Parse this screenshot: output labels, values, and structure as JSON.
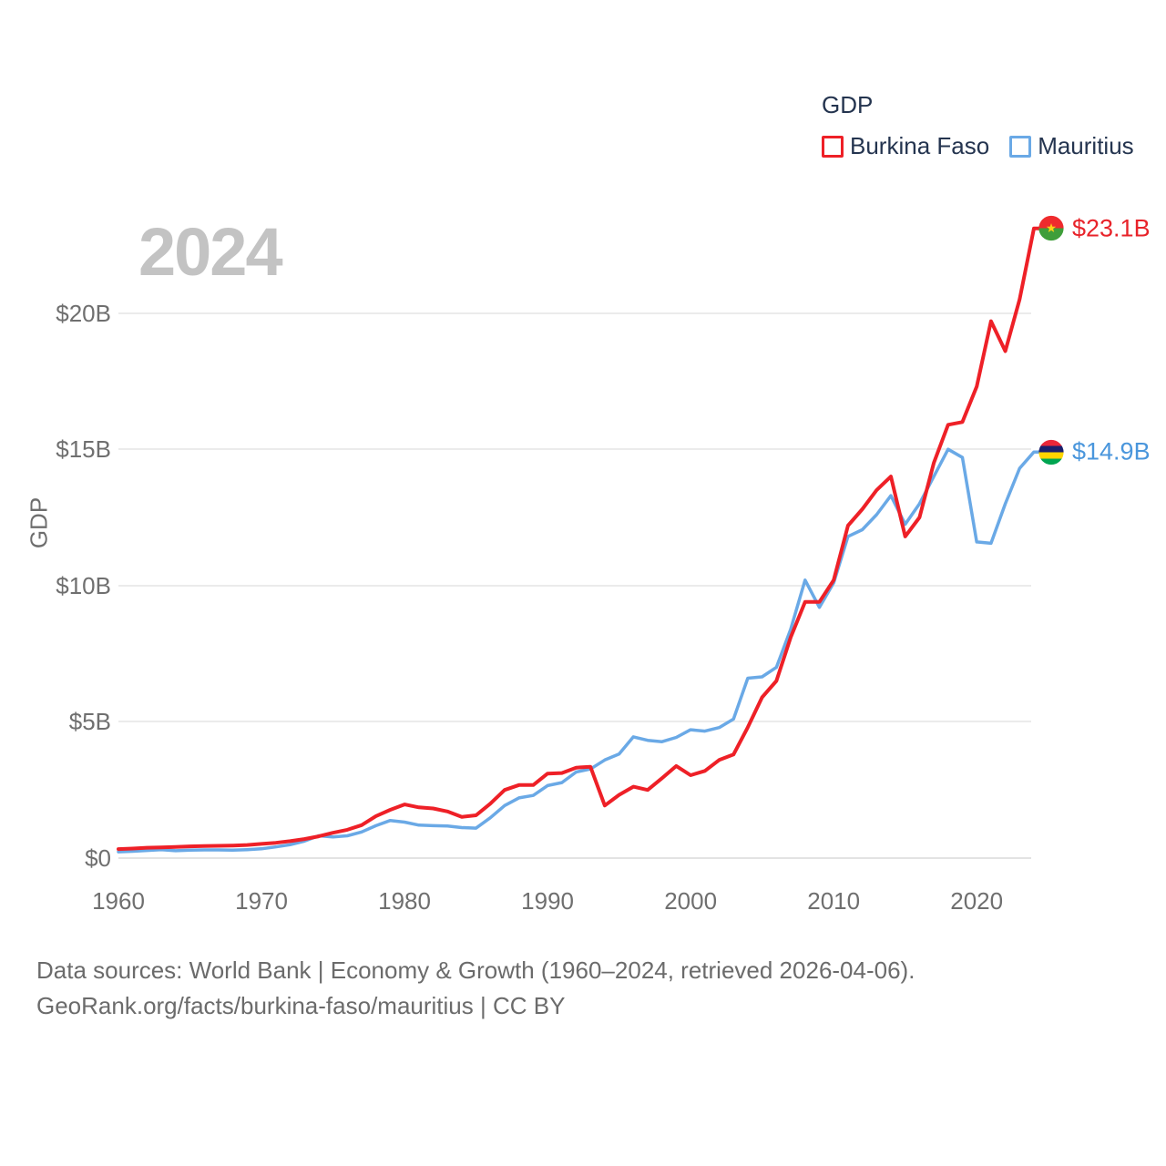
{
  "chart": {
    "watermark": "2024"
  },
  "legend": {
    "title": "GDP",
    "items": [
      {
        "label": "Burkina Faso",
        "color": "#ee2027"
      },
      {
        "label": "Mauritius",
        "color": "#6aa9e6"
      }
    ]
  },
  "series_end_labels": {
    "burkina_faso": "$23.1B",
    "mauritius": "$14.9B"
  },
  "footer": {
    "line1": "Data sources: World Bank | Economy & Growth (1960–2024, retrieved 2026-04-06).",
    "line2": "GeoRank.org/facts/burkina-faso/mauritius | CC BY"
  },
  "chart_data": {
    "type": "line",
    "title": "GDP",
    "xlabel": "",
    "ylabel": "GDP",
    "xlim": [
      1960,
      2024
    ],
    "ylim": [
      0,
      23.5
    ],
    "grid": "horizontal",
    "legend_position": "top-right",
    "x": [
      1960,
      1961,
      1962,
      1963,
      1964,
      1965,
      1966,
      1967,
      1968,
      1969,
      1970,
      1971,
      1972,
      1973,
      1974,
      1975,
      1976,
      1977,
      1978,
      1979,
      1980,
      1981,
      1982,
      1983,
      1984,
      1985,
      1986,
      1987,
      1988,
      1989,
      1990,
      1991,
      1992,
      1993,
      1994,
      1995,
      1996,
      1997,
      1998,
      1999,
      2000,
      2001,
      2002,
      2003,
      2004,
      2005,
      2006,
      2007,
      2008,
      2009,
      2010,
      2011,
      2012,
      2013,
      2014,
      2015,
      2016,
      2017,
      2018,
      2019,
      2020,
      2021,
      2022,
      2023,
      2024
    ],
    "x_ticks": [
      {
        "value": 1960,
        "label": "1960"
      },
      {
        "value": 1970,
        "label": "1970"
      },
      {
        "value": 1980,
        "label": "1980"
      },
      {
        "value": 1990,
        "label": "1990"
      },
      {
        "value": 2000,
        "label": "2000"
      },
      {
        "value": 2010,
        "label": "2010"
      },
      {
        "value": 2020,
        "label": "2020"
      }
    ],
    "y_ticks": [
      {
        "value": 0,
        "label": "$0"
      },
      {
        "value": 5,
        "label": "$5B"
      },
      {
        "value": 10,
        "label": "$10B"
      },
      {
        "value": 15,
        "label": "$15B"
      },
      {
        "value": 20,
        "label": "$20B"
      }
    ],
    "series": [
      {
        "name": "Burkina Faso",
        "color": "#ee2027",
        "label_color": "#e8232a",
        "end_value_label": "$23.1B",
        "values": [
          0.33,
          0.35,
          0.38,
          0.39,
          0.41,
          0.43,
          0.44,
          0.45,
          0.46,
          0.48,
          0.52,
          0.56,
          0.62,
          0.7,
          0.8,
          0.93,
          1.04,
          1.21,
          1.54,
          1.77,
          1.97,
          1.86,
          1.82,
          1.71,
          1.51,
          1.57,
          2.0,
          2.5,
          2.68,
          2.68,
          3.1,
          3.12,
          3.32,
          3.35,
          1.93,
          2.32,
          2.62,
          2.5,
          2.93,
          3.38,
          3.04,
          3.2,
          3.6,
          3.8,
          4.8,
          5.9,
          6.5,
          8.1,
          9.4,
          9.4,
          10.2,
          12.2,
          12.8,
          13.5,
          14.0,
          11.8,
          12.5,
          14.5,
          15.9,
          16.0,
          17.3,
          19.7,
          18.6,
          20.5,
          23.1
        ]
      },
      {
        "name": "Mauritius",
        "color": "#6aa9e6",
        "label_color": "#4a96dc",
        "end_value_label": "$14.9B",
        "values": [
          0.23,
          0.25,
          0.28,
          0.31,
          0.27,
          0.29,
          0.3,
          0.3,
          0.29,
          0.31,
          0.34,
          0.41,
          0.49,
          0.62,
          0.82,
          0.78,
          0.82,
          0.96,
          1.19,
          1.38,
          1.32,
          1.21,
          1.19,
          1.18,
          1.12,
          1.1,
          1.48,
          1.93,
          2.21,
          2.3,
          2.66,
          2.77,
          3.16,
          3.27,
          3.6,
          3.82,
          4.45,
          4.32,
          4.27,
          4.43,
          4.71,
          4.66,
          4.79,
          5.1,
          6.6,
          6.65,
          7.0,
          8.4,
          10.2,
          9.2,
          10.1,
          11.8,
          12.05,
          12.6,
          13.3,
          12.25,
          13.0,
          14.0,
          15.0,
          14.7,
          11.6,
          11.55,
          13.0,
          14.3,
          14.9
        ]
      }
    ]
  }
}
